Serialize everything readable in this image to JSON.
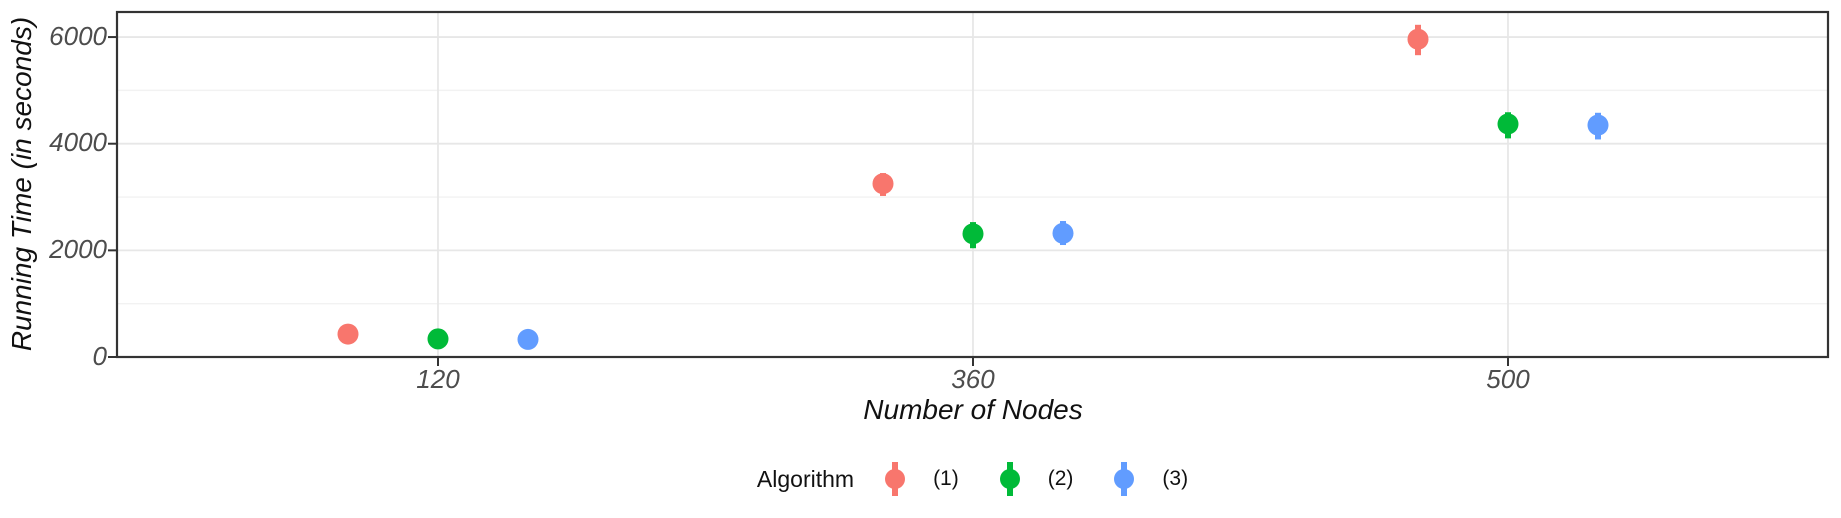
{
  "chart_data": {
    "type": "scatter",
    "variant": "pointrange-dodged",
    "title": "",
    "xlabel": "Number of Nodes",
    "ylabel": "Running Time (in seconds)",
    "categories": [
      "120",
      "360",
      "500"
    ],
    "series": [
      {
        "name": "(1)",
        "color": "#F8766D",
        "values": [
          430,
          3250,
          5960
        ],
        "error_low": [
          380,
          3020,
          5660
        ],
        "error_high": [
          480,
          3450,
          6230
        ]
      },
      {
        "name": "(2)",
        "color": "#00BA38",
        "values": [
          340,
          2310,
          4370
        ],
        "error_low": [
          300,
          2040,
          4100
        ],
        "error_high": [
          380,
          2530,
          4590
        ]
      },
      {
        "name": "(3)",
        "color": "#619CFF",
        "values": [
          330,
          2320,
          4350
        ],
        "error_low": [
          290,
          2100,
          4080
        ],
        "error_high": [
          370,
          2550,
          4580
        ]
      }
    ],
    "ylim": [
      0,
      6470
    ],
    "y_major_ticks": [
      0,
      2000,
      4000,
      6000
    ],
    "y_tick_labels": [
      "0",
      "2000",
      "4000",
      "6000"
    ],
    "y_minor_gridlines": [
      1000,
      3000,
      5000
    ],
    "grid": "on",
    "legend_position": "bottom",
    "legend_title": "Algorithm",
    "axis_text_color": "#4d4d4d",
    "panel_border_color": "#333333",
    "major_grid_color": "#e7e7e7",
    "minor_grid_color": "#f2f2f2"
  }
}
